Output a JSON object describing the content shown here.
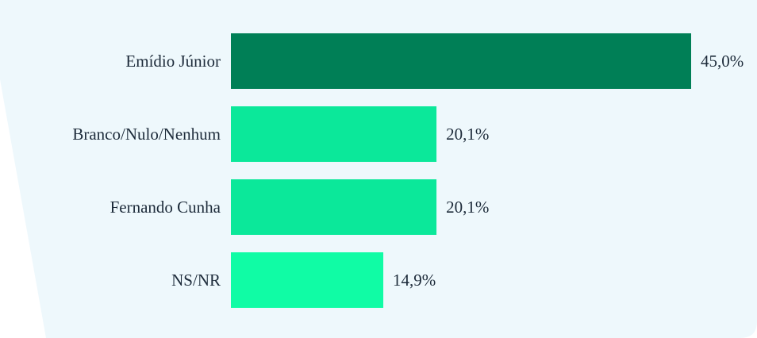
{
  "chart_data": {
    "type": "bar",
    "orientation": "horizontal",
    "categories": [
      "Emídio Júnior",
      "Branco/Nulo/Nenhum",
      "Fernando Cunha",
      "NS/NR"
    ],
    "values": [
      45.0,
      20.1,
      20.1,
      14.9
    ],
    "value_labels": [
      "45,0%",
      "20,1%",
      "20,1%",
      "14,9%"
    ],
    "bar_colors": [
      "#007f56",
      "#0be89a",
      "#0be89a",
      "#10fca5"
    ],
    "xlim": [
      0,
      45
    ],
    "title": "",
    "xlabel": "",
    "ylabel": "",
    "grid": false,
    "legend": "none"
  },
  "theme": {
    "background": "#eef8fc",
    "page": "#ffffff",
    "text": "#1d2b3a"
  }
}
